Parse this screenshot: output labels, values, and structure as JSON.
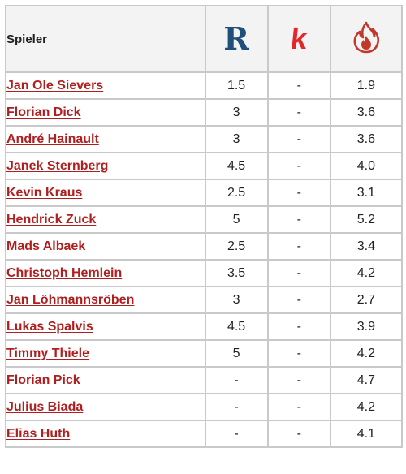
{
  "header": {
    "player_label": "Spieler",
    "col_r_logo": "R",
    "col_k_logo": "k",
    "col_flame_icon": "flame-icon"
  },
  "colors": {
    "link": "#b01f1f",
    "r_logo": "#1f4f7a",
    "k_logo": "#e4262b",
    "flame": "#c0392b",
    "border": "#c9c9c9"
  },
  "rows": [
    {
      "name": "Jan Ole Sievers",
      "r": "1.5",
      "k": "-",
      "f": "1.9"
    },
    {
      "name": "Florian Dick",
      "r": "3",
      "k": "-",
      "f": "3.6"
    },
    {
      "name": "André Hainault",
      "r": "3",
      "k": "-",
      "f": "3.6"
    },
    {
      "name": "Janek Sternberg",
      "r": "4.5",
      "k": "-",
      "f": "4.0"
    },
    {
      "name": "Kevin Kraus",
      "r": "2.5",
      "k": "-",
      "f": "3.1"
    },
    {
      "name": "Hendrick Zuck",
      "r": "5",
      "k": "-",
      "f": "5.2"
    },
    {
      "name": "Mads Albaek",
      "r": "2.5",
      "k": "-",
      "f": "3.4"
    },
    {
      "name": "Christoph Hemlein",
      "r": "3.5",
      "k": "-",
      "f": "4.2"
    },
    {
      "name": "Jan Löhmannsröben",
      "r": "3",
      "k": "-",
      "f": "2.7"
    },
    {
      "name": "Lukas Spalvis",
      "r": "4.5",
      "k": "-",
      "f": "3.9"
    },
    {
      "name": "Timmy Thiele",
      "r": "5",
      "k": "-",
      "f": "4.2"
    },
    {
      "name": "Florian Pick",
      "r": "-",
      "k": "-",
      "f": "4.7"
    },
    {
      "name": "Julius Biada",
      "r": "-",
      "k": "-",
      "f": "4.2"
    },
    {
      "name": "Elias Huth",
      "r": "-",
      "k": "-",
      "f": "4.1"
    }
  ]
}
